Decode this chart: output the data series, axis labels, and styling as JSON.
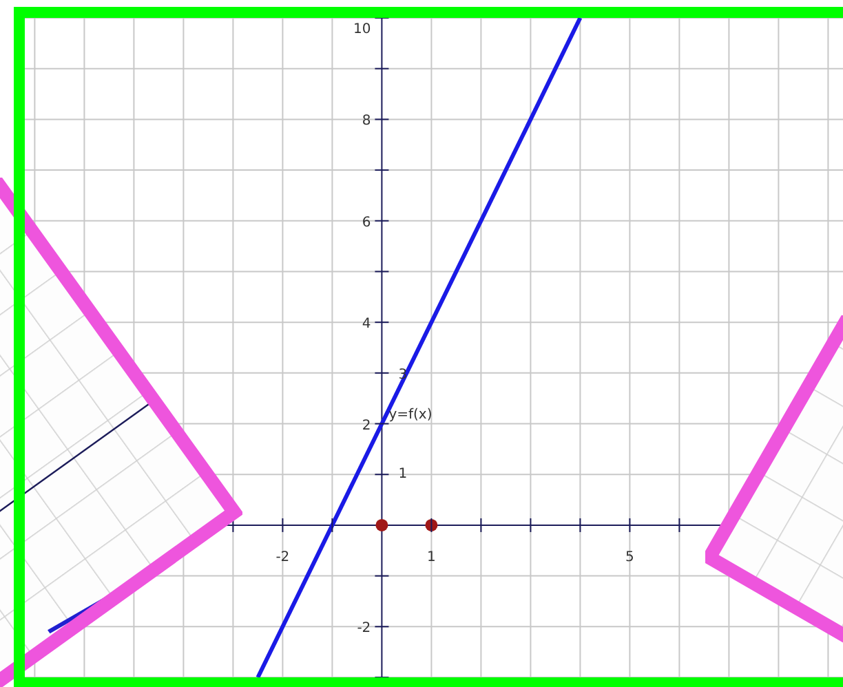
{
  "chart_data": {
    "type": "line",
    "xlim": [
      -7.2,
      9.3
    ],
    "ylim": [
      -3,
      10
    ],
    "xticks": [
      {
        "value": -7,
        "label": null
      },
      {
        "value": -6,
        "label": null
      },
      {
        "value": -5,
        "label": null
      },
      {
        "value": -4,
        "label": null
      },
      {
        "value": -3,
        "label": null
      },
      -2,
      {
        "value": -1,
        "label": null
      },
      1,
      {
        "value": 2,
        "label": null
      },
      {
        "value": 3,
        "label": null
      },
      {
        "value": 4,
        "label": null
      },
      5,
      {
        "value": 6,
        "label": null
      },
      {
        "value": 7,
        "label": null
      },
      {
        "value": 8,
        "label": null
      },
      {
        "value": 9,
        "label": null
      }
    ],
    "yticks": [
      {
        "value": -3,
        "label": null
      },
      -2,
      {
        "value": -1,
        "label": null
      },
      {
        "value": 1,
        "label": null
      },
      2,
      {
        "value": 3,
        "label": null
      },
      4,
      {
        "value": 5,
        "label": null
      },
      6,
      {
        "value": 7,
        "label": null
      },
      8,
      {
        "value": 9,
        "label": null
      },
      10
    ],
    "grid": true,
    "series": [
      {
        "type": "line",
        "color": "#1a1ae6",
        "x": [
          -2.5,
          4
        ],
        "values": [
          -3,
          10
        ],
        "marker": "none",
        "line_style": "solid"
      },
      {
        "type": "scatter",
        "color": "#a01818",
        "x": [
          0,
          1
        ],
        "values": [
          0,
          0
        ],
        "marker": "circle"
      }
    ],
    "annotations": [
      {
        "text": "y=f(x)",
        "x": 0,
        "y": 2.2
      },
      "1",
      "3"
    ]
  }
}
